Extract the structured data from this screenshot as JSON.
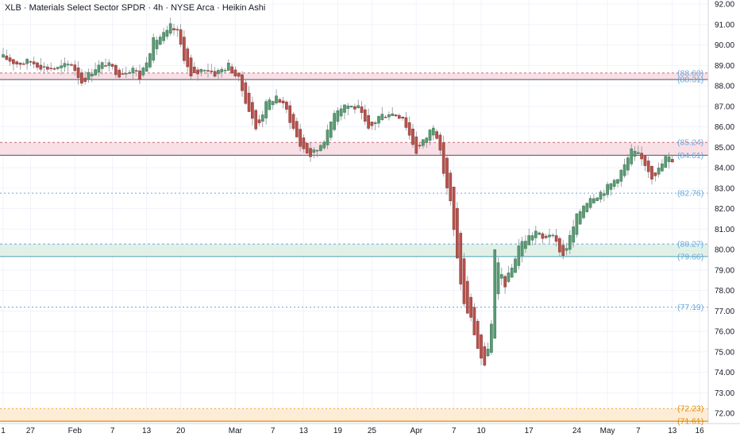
{
  "chart_title": "XLB · Materials Select Sector SPDR · 4h · NYSE Arca · Heikin Ashi",
  "colors": {
    "up": "#5b9a74",
    "down": "#b5524d",
    "grid": "#f0f3fa",
    "axis_text": "#131722",
    "blue_level": "#6aa9dd",
    "orange_level": "#f0a030",
    "red_zone": "#f8dde3",
    "green_zone": "#dff0e4",
    "orange_zone": "#fdebd3"
  },
  "chart_data": {
    "type": "candlestick",
    "symbol": "XLB",
    "interval": "4h",
    "exchange": "NYSE Arca",
    "style": "Heikin Ashi",
    "y_range": [
      71.5,
      92.2
    ],
    "y_ticks": [
      "92.00",
      "91.00",
      "90.00",
      "89.00",
      "88.00",
      "87.00",
      "86.00",
      "85.00",
      "84.00",
      "83.00",
      "82.00",
      "81.00",
      "80.00",
      "79.00",
      "78.00",
      "77.00",
      "76.00",
      "75.00",
      "74.00",
      "73.00",
      "72.00"
    ],
    "x_ticks": [
      {
        "label": "1",
        "bar": 0
      },
      {
        "label": "27",
        "bar": 8
      },
      {
        "label": "Feb",
        "bar": 21
      },
      {
        "label": "7",
        "bar": 32
      },
      {
        "label": "13",
        "bar": 42
      },
      {
        "label": "20",
        "bar": 52
      },
      {
        "label": "Mar",
        "bar": 68
      },
      {
        "label": "7",
        "bar": 79
      },
      {
        "label": "13",
        "bar": 88
      },
      {
        "label": "19",
        "bar": 98
      },
      {
        "label": "25",
        "bar": 108
      },
      {
        "label": "Apr",
        "bar": 121
      },
      {
        "label": "7",
        "bar": 132
      },
      {
        "label": "10",
        "bar": 140
      },
      {
        "label": "17",
        "bar": 154
      },
      {
        "label": "24",
        "bar": 168
      },
      {
        "label": "May",
        "bar": 177
      },
      {
        "label": "7",
        "bar": 186
      },
      {
        "label": "13",
        "bar": 196
      },
      {
        "label": "16",
        "bar": 204
      }
    ],
    "levels": [
      {
        "value": 88.63,
        "label": "(88.63)",
        "kind": "zone-top"
      },
      {
        "value": 88.31,
        "label": "(88.31)",
        "kind": "zone-bottom"
      },
      {
        "value": 85.24,
        "label": "(85.24)",
        "kind": "zone-top"
      },
      {
        "value": 84.61,
        "label": "(84.61)",
        "kind": "zone-bottom"
      },
      {
        "value": 82.76,
        "label": "(82.76)",
        "kind": "line"
      },
      {
        "value": 80.27,
        "label": "(80.27)",
        "kind": "zone-top"
      },
      {
        "value": 79.66,
        "label": "(79.66)",
        "kind": "zone-bottom"
      },
      {
        "value": 77.19,
        "label": "(77.19)",
        "kind": "line"
      },
      {
        "value": 72.23,
        "label": "(72.23)",
        "kind": "orange-top"
      },
      {
        "value": 71.61,
        "label": "(71.61)",
        "kind": "orange-bottom"
      }
    ],
    "zones": [
      {
        "from": 88.31,
        "to": 88.63,
        "color": "red"
      },
      {
        "from": 84.61,
        "to": 85.24,
        "color": "red"
      },
      {
        "from": 79.66,
        "to": 80.27,
        "color": "green"
      },
      {
        "from": 71.61,
        "to": 72.23,
        "color": "orange"
      }
    ],
    "ohlc_anchor": [
      [
        0,
        89.4
      ],
      [
        4,
        89.1
      ],
      [
        8,
        89.2
      ],
      [
        12,
        88.9
      ],
      [
        16,
        88.85
      ],
      [
        20,
        89.1
      ],
      [
        23,
        88.2
      ],
      [
        27,
        88.9
      ],
      [
        30,
        89.1
      ],
      [
        34,
        88.6
      ],
      [
        38,
        88.9
      ],
      [
        40,
        88.4
      ],
      [
        44,
        90.2
      ],
      [
        48,
        90.6
      ],
      [
        49,
        90.9
      ],
      [
        51,
        90.6
      ],
      [
        53,
        89.4
      ],
      [
        55,
        88.4
      ],
      [
        59,
        88.9
      ],
      [
        62,
        88.6
      ],
      [
        66,
        89.0
      ],
      [
        69,
        88.3
      ],
      [
        72,
        86.8
      ],
      [
        74,
        85.9
      ],
      [
        77,
        87.1
      ],
      [
        80,
        87.5
      ],
      [
        83,
        86.8
      ],
      [
        85,
        85.9
      ],
      [
        87,
        85.1
      ],
      [
        90,
        84.6
      ],
      [
        92,
        84.9
      ],
      [
        95,
        85.7
      ],
      [
        97,
        86.8
      ],
      [
        100,
        87.1
      ],
      [
        104,
        86.9
      ],
      [
        107,
        85.8
      ],
      [
        110,
        86.5
      ],
      [
        113,
        86.7
      ],
      [
        117,
        86.5
      ],
      [
        119,
        85.6
      ],
      [
        121,
        84.8
      ],
      [
        124,
        85.5
      ],
      [
        126,
        86.1
      ],
      [
        127,
        85.6
      ],
      [
        129,
        83.8
      ],
      [
        131,
        82.3
      ],
      [
        133,
        79.5
      ],
      [
        135,
        77.3
      ],
      [
        137,
        76.6
      ],
      [
        139,
        75.2
      ],
      [
        141,
        74.2
      ],
      [
        143,
        76.3
      ],
      [
        144,
        79.9
      ],
      [
        145,
        79.2
      ],
      [
        147,
        78.3
      ],
      [
        149,
        79.1
      ],
      [
        151,
        80.2
      ],
      [
        153,
        80.5
      ],
      [
        156,
        80.9
      ],
      [
        158,
        80.5
      ],
      [
        160,
        80.8
      ],
      [
        162,
        80.3
      ],
      [
        164,
        79.7
      ],
      [
        166,
        80.6
      ],
      [
        168,
        81.6
      ],
      [
        170,
        82.2
      ],
      [
        172,
        82.6
      ],
      [
        174,
        82.7
      ],
      [
        176,
        82.9
      ],
      [
        178,
        83.2
      ],
      [
        180,
        83.6
      ],
      [
        182,
        84.1
      ],
      [
        184,
        84.8
      ],
      [
        186,
        84.6
      ],
      [
        188,
        84.2
      ],
      [
        190,
        83.6
      ],
      [
        192,
        83.9
      ],
      [
        194,
        84.5
      ],
      [
        196,
        84.4
      ]
    ]
  }
}
